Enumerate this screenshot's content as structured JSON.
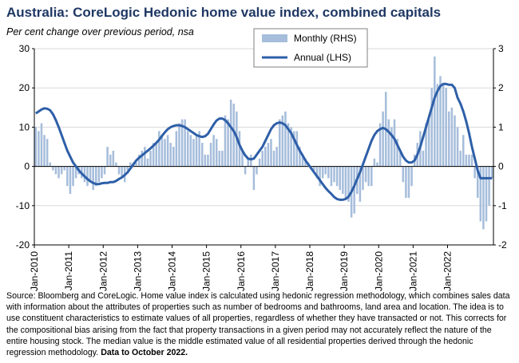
{
  "title": "Australia: CoreLogic Hedonic home value index, combined capitals",
  "subtitle": "Per cent change over previous period, nsa",
  "source": {
    "text": "Source: Bloomberg and CoreLogic. Home value index is calculated using hedonic regression methodology, which combines sales data with information about the attributes of properties such as number of bedrooms and bathrooms, land area and location. The idea is to use constituent characteristics to estimate values of all properties, regardless of whether they have transacted or not. This corrects for the compositional bias arising from the fact that property transactions in a given period may not accurately reflect the nature of the entire housing stock. The median value is the middle estimated value of all residential properties derived through the hedonic regression methodology.",
    "bold": "Data to October 2022."
  },
  "chart_data": {
    "type": "bar+line",
    "x_labels": [
      "Jan-2010",
      "Jan-2011",
      "Jan-2012",
      "Jan-2013",
      "Jan-2014",
      "Jan-2015",
      "Jan-2016",
      "Jan-2017",
      "Jan-2018",
      "Jan-2019",
      "Jan-2020",
      "Jan-2021",
      "Jan-2022"
    ],
    "start": "2010-01",
    "end": "2022-10",
    "y_left": {
      "min": -20,
      "max": 30,
      "ticks": [
        -20,
        -10,
        0,
        10,
        20,
        30
      ]
    },
    "y_right": {
      "min": -2,
      "max": 3,
      "ticks": [
        -2,
        -1,
        0,
        1,
        2,
        3
      ]
    },
    "grid": "horizontal",
    "legend_position": "top-center",
    "series": [
      {
        "name": "Monthly (RHS)",
        "type": "bar",
        "axis": "right",
        "color": "#a6bddb",
        "values": [
          1.0,
          0.9,
          1.1,
          0.8,
          0.7,
          0.1,
          -0.1,
          -0.2,
          -0.3,
          -0.2,
          -0.1,
          -0.5,
          -0.7,
          -0.5,
          -0.3,
          -0.2,
          -0.3,
          -0.4,
          -0.5,
          -0.4,
          -0.6,
          -0.5,
          -0.4,
          -0.3,
          -0.2,
          0.5,
          0.3,
          0.4,
          0.1,
          -0.2,
          -0.3,
          -0.4,
          -0.1,
          0.1,
          0.1,
          0.1,
          0.3,
          0.4,
          0.5,
          0.2,
          0.4,
          0.6,
          0.6,
          0.9,
          0.8,
          0.7,
          0.8,
          0.6,
          0.5,
          0.9,
          1.1,
          1.2,
          1.2,
          0.9,
          0.8,
          0.7,
          0.8,
          0.9,
          0.6,
          0.3,
          0.3,
          0.6,
          0.8,
          0.7,
          0.4,
          0.4,
          1.3,
          1.2,
          1.7,
          1.6,
          1.4,
          0.9,
          0.4,
          -0.2,
          0.2,
          0.3,
          -0.6,
          -0.2,
          0.2,
          0.4,
          0.5,
          0.6,
          0.7,
          0.4,
          0.5,
          1.2,
          1.3,
          1.4,
          1.1,
          1.0,
          0.9,
          0.9,
          0.5,
          0.3,
          0.2,
          0.1,
          0.0,
          -0.1,
          -0.3,
          -0.5,
          -0.3,
          -0.2,
          -0.3,
          -0.5,
          -0.4,
          -0.5,
          -0.6,
          -0.7,
          -0.8,
          -0.9,
          -1.3,
          -1.2,
          -0.7,
          -0.9,
          -0.6,
          -0.4,
          -0.5,
          -0.5,
          0.2,
          0.1,
          1.1,
          1.4,
          1.9,
          1.2,
          1.0,
          1.2,
          0.7,
          0.4,
          -0.4,
          -0.8,
          -0.8,
          -0.5,
          0.3,
          0.6,
          0.9,
          0.4,
          1.1,
          1.2,
          2.0,
          2.8,
          2.1,
          2.3,
          2.1,
          2.0,
          1.4,
          1.5,
          1.3,
          1.0,
          0.4,
          0.8,
          0.3,
          0.3,
          0.3,
          -0.3,
          -0.8,
          -1.4,
          -1.6,
          -1.4,
          -1.0,
          -0.3
        ]
      },
      {
        "name": "Annual (LHS)",
        "type": "line",
        "axis": "left",
        "color": "#2e5fa8",
        "values": [
          13.5,
          14.0,
          14.5,
          14.8,
          14.7,
          14.3,
          13.3,
          11.8,
          10.0,
          8.0,
          6.0,
          4.0,
          2.5,
          1.0,
          0.0,
          -1.0,
          -1.8,
          -2.5,
          -3.2,
          -3.8,
          -4.2,
          -4.5,
          -4.5,
          -4.3,
          -4.2,
          -4.2,
          -4.0,
          -4.0,
          -3.7,
          -3.2,
          -2.8,
          -2.2,
          -1.5,
          -0.5,
          0.5,
          1.5,
          2.2,
          2.8,
          3.4,
          4.0,
          4.6,
          5.3,
          6.0,
          6.8,
          7.8,
          8.7,
          9.5,
          10.0,
          10.3,
          10.5,
          10.5,
          10.3,
          10.0,
          9.5,
          9.0,
          8.5,
          8.0,
          7.7,
          7.5,
          7.7,
          8.3,
          9.5,
          10.7,
          11.7,
          12.2,
          12.2,
          11.8,
          11.0,
          10.0,
          9.0,
          7.5,
          5.5,
          4.0,
          2.8,
          2.0,
          1.8,
          2.0,
          3.0,
          4.0,
          5.0,
          6.5,
          8.0,
          9.5,
          10.5,
          11.0,
          11.2,
          11.0,
          10.5,
          9.5,
          8.5,
          7.0,
          5.5,
          4.0,
          2.8,
          1.5,
          0.5,
          -0.5,
          -1.5,
          -2.5,
          -3.5,
          -4.5,
          -5.5,
          -6.3,
          -7.0,
          -7.8,
          -8.3,
          -8.5,
          -8.5,
          -8.3,
          -7.7,
          -6.5,
          -5.0,
          -3.2,
          -1.5,
          0.5,
          2.5,
          4.5,
          6.5,
          8.0,
          9.0,
          9.5,
          9.8,
          9.5,
          8.8,
          8.0,
          7.0,
          5.5,
          4.0,
          2.5,
          1.5,
          1.0,
          1.0,
          1.5,
          3.0,
          5.0,
          7.5,
          10.0,
          12.5,
          15.0,
          17.5,
          19.2,
          20.5,
          21.0,
          21.0,
          20.8,
          20.8,
          20.0,
          17.5,
          16.0,
          14.0,
          11.5,
          8.5,
          5.0,
          2.0,
          -1.0,
          -3.0,
          -3.0,
          -3.0,
          -3.0,
          -3.0
        ]
      }
    ]
  }
}
